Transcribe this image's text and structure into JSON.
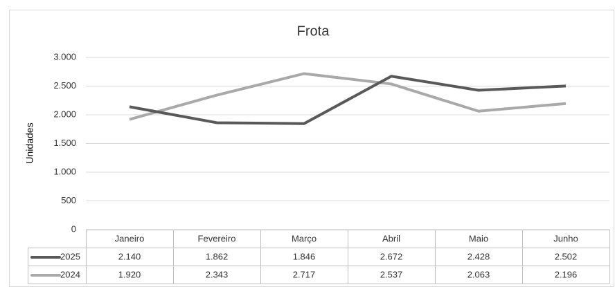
{
  "chart_data": {
    "type": "line",
    "title": "Frota",
    "y_label": "Unidades",
    "categories": [
      "Janeiro",
      "Fevereiro",
      "Março",
      "Abril",
      "Maio",
      "Junho"
    ],
    "series": [
      {
        "name": "2025",
        "color": "#595959",
        "values": [
          2140,
          1862,
          1846,
          2672,
          2428,
          2502
        ],
        "value_labels": [
          "2.140",
          "1.862",
          "1.846",
          "2.672",
          "2.428",
          "2.502"
        ]
      },
      {
        "name": "2024",
        "color": "#a9a9a9",
        "values": [
          1920,
          2343,
          2717,
          2537,
          2063,
          2196
        ],
        "value_labels": [
          "1.920",
          "2.343",
          "2.717",
          "2.537",
          "2.063",
          "2.196"
        ]
      }
    ],
    "ylim": [
      0,
      3000
    ],
    "yticks": [
      0,
      500,
      {
        "value": 1000,
        "label": "1.000"
      },
      {
        "value": 1500,
        "label": "1.500"
      },
      {
        "value": 2000,
        "label": "2.000"
      },
      {
        "value": 2500,
        "label": "2.500"
      },
      {
        "value": 3000,
        "label": "3.000"
      }
    ],
    "grid": true
  }
}
